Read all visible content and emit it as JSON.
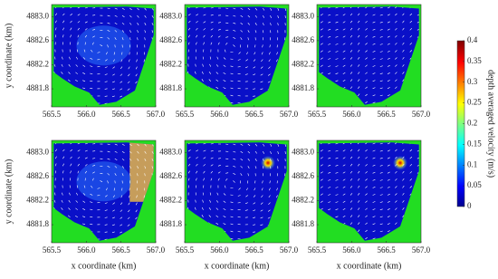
{
  "chart_data": {
    "type": "quiver",
    "panel_count": 6,
    "xlabel": "x coordinate (km)",
    "ylabel": "y coordinate (km)",
    "xlim": [
      565.5,
      567.0
    ],
    "ylim": [
      4881.5,
      4883.2
    ],
    "xticks": [
      565.5,
      {
        "value": 566.0,
        "label": "566.0"
      },
      566.5,
      {
        "value": 567.0,
        "label": "567.0"
      }
    ],
    "yticks": [
      4881.8,
      4882.2,
      4882.6,
      {
        "value": 4883.0,
        "label": "4883.0"
      }
    ],
    "colorbar": {
      "label": "depth averaged velocity (m/s)",
      "lim": [
        0,
        0.4
      ],
      "ticks": [
        0,
        0.05,
        0.1,
        0.15,
        0.2,
        0.25,
        0.3,
        0.35,
        0.4
      ]
    }
  }
}
